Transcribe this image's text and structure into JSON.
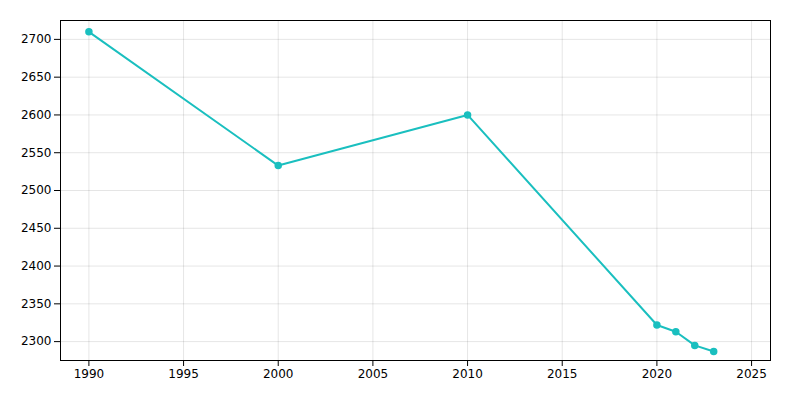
{
  "chart_data": {
    "type": "line",
    "x": [
      1990,
      2000,
      2010,
      2020,
      2021,
      2022,
      2023
    ],
    "values": [
      2710,
      2533,
      2600,
      2322,
      2313,
      2295,
      2287
    ],
    "color": "#1abfbf",
    "marker": "circle",
    "xlim": [
      1988.5,
      2026
    ],
    "ylim": [
      2275,
      2725
    ],
    "xticks": [
      1990,
      1995,
      2000,
      2005,
      2010,
      2015,
      2020,
      2025
    ],
    "yticks": [
      2300,
      2350,
      2400,
      2450,
      2500,
      2550,
      2600,
      2650,
      2700
    ],
    "grid": true
  }
}
